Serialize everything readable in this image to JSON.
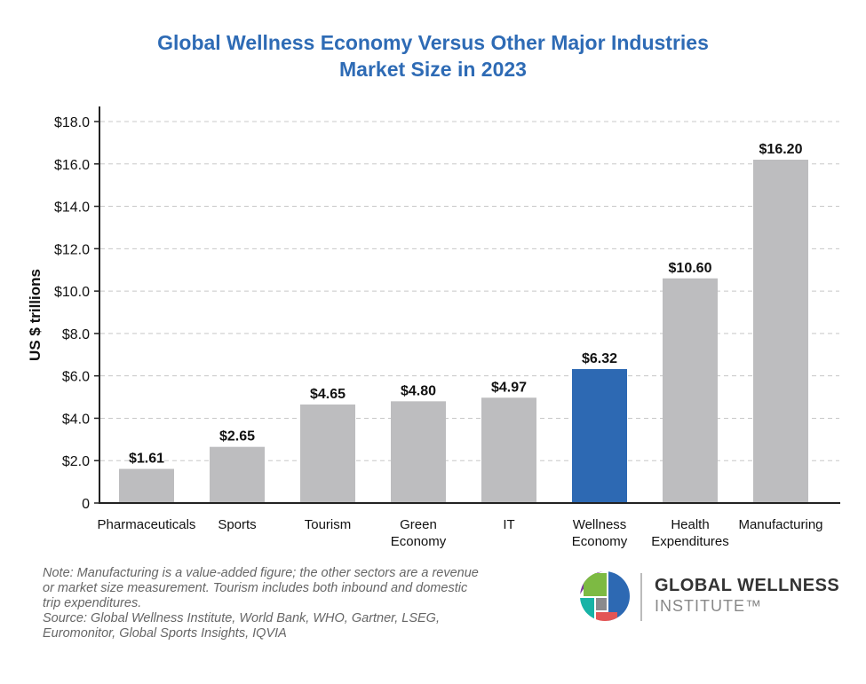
{
  "chart_data": {
    "type": "bar",
    "title": "Global Wellness Economy Versus Other Major Industries",
    "subtitle": "Market Size in 2023",
    "ylabel": "US $ trillions",
    "xlabel": "",
    "ylim": [
      0,
      18
    ],
    "yticks": [
      "0",
      "$2.0",
      "$4.0",
      "$6.0",
      "$8.0",
      "$10.0",
      "$12.0",
      "$14.0",
      "$16.0",
      "$18.0"
    ],
    "grid": true,
    "categories": [
      [
        "Pharmaceuticals"
      ],
      [
        "Sports"
      ],
      [
        "Tourism"
      ],
      [
        "Green",
        "Economy"
      ],
      [
        "IT"
      ],
      [
        "Wellness",
        "Economy"
      ],
      [
        "Health",
        "Expenditures"
      ],
      [
        "Manufacturing"
      ]
    ],
    "values": [
      1.61,
      2.65,
      4.65,
      4.8,
      4.97,
      6.32,
      10.6,
      16.2
    ],
    "data_labels": [
      "$1.61",
      "$2.65",
      "$4.65",
      "$4.80",
      "$4.97",
      "$6.32",
      "$10.60",
      "$16.20"
    ],
    "highlight_index": 5,
    "colors": {
      "default": "#bdbdbf",
      "highlight": "#2d69b3",
      "title": "#2e6bb5"
    }
  },
  "note": [
    "Note: Manufacturing is a value-added figure; the other sectors are a revenue",
    "or market size measurement. Tourism includes both inbound and domestic",
    "trip expenditures.",
    "Source: Global Wellness Institute, World Bank, WHO, Gartner, LSEG,",
    "Euromonitor, Global Sports Insights, IQVIA"
  ],
  "logo": {
    "line1": "GLOBAL WELLNESS",
    "line2": "INSTITUTE™"
  }
}
